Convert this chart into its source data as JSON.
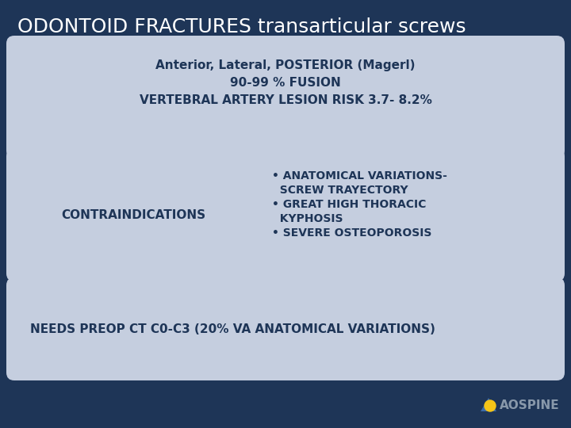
{
  "title": "ODONTOID FRACTURES transarticular screws",
  "title_color": "#ffffff",
  "background_color": "#1e3557",
  "box_color": "#c5cedf",
  "title_fontsize": 18,
  "text_fontsize": 11,
  "small_fontsize": 10,
  "box1_line1": "Anterior, Lateral, POSTERIOR (Magerl)",
  "box1_line2": "90-99 % FUSION",
  "box1_line3": "VERTEBRAL ARTERY LESION RISK 3.7- 8.2%",
  "box2_left_text": "CONTRAINDICATIONS",
  "bullet_line1a": "• ANATOMICAL VARIATIONS-",
  "bullet_line1b": "  SCREW TRAYECTORY",
  "bullet_line2a": "• GREAT HIGH THORACIC",
  "bullet_line2b": "  KYPHOSIS",
  "bullet_line3": "• SEVERE OSTEOPOROSIS",
  "box3_text": "NEEDS PREOP CT C0-C3 (20% VA ANATOMICAL VARIATIONS)",
  "aospine_text": "AOSPINE",
  "text_color": "#1e3557",
  "ao_circle_color": "#f5c518",
  "ao_triangle_color": "#3a6baa",
  "ao_text_color": "#8898aa"
}
